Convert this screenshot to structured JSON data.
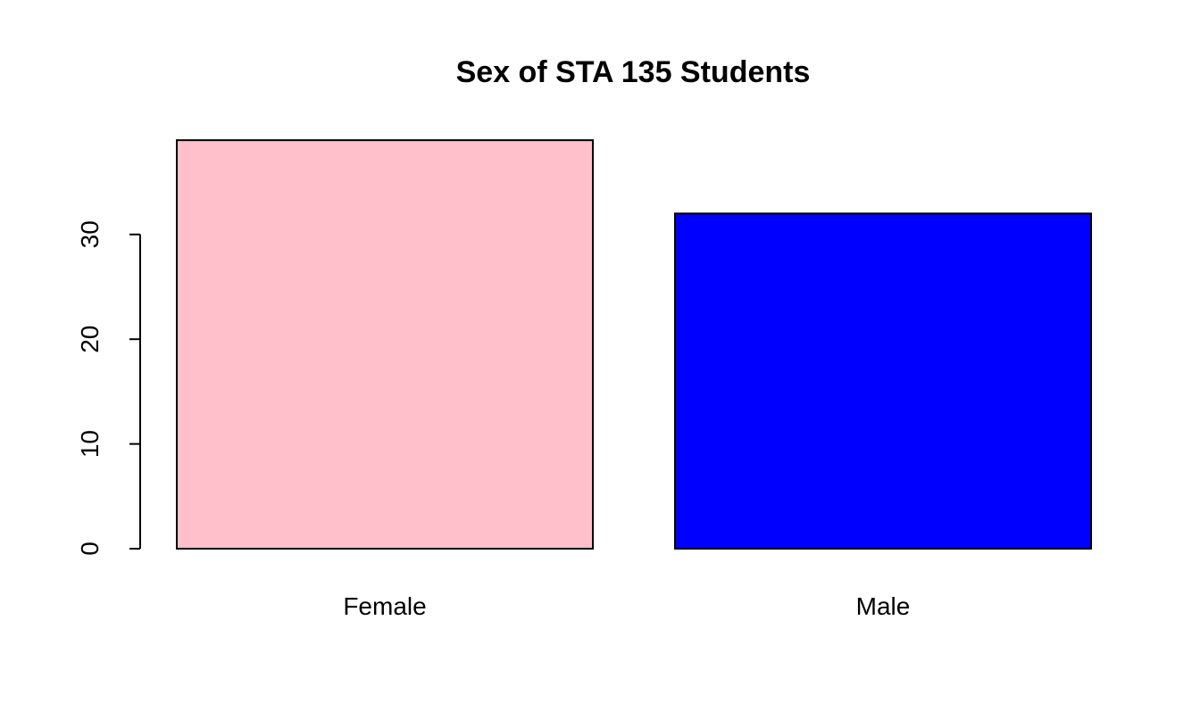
{
  "chart_data": {
    "type": "bar",
    "title": "Sex of STA 135 Students",
    "xlabel": "",
    "ylabel": "",
    "categories": [
      "Female",
      "Male"
    ],
    "values": [
      39,
      32
    ],
    "colors": [
      "#ffc0cb",
      "#0000ff"
    ],
    "yticks": [
      0,
      10,
      20,
      30
    ],
    "ylim": [
      0,
      39
    ],
    "grid": false
  }
}
